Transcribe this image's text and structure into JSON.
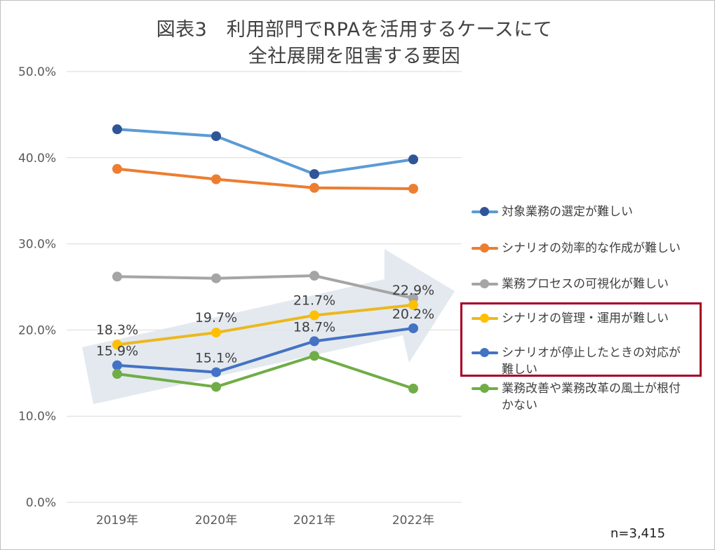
{
  "chart_data": {
    "type": "line",
    "title_line1": "図表3　利用部門でRPAを活用するケースにて",
    "title_line2": "全社展開を阻害する要因",
    "categories": [
      "2019年",
      "2020年",
      "2021年",
      "2022年"
    ],
    "y_ticks": [
      "0.0%",
      "10.0%",
      "20.0%",
      "30.0%",
      "40.0%",
      "50.0%"
    ],
    "ylim": [
      0,
      50
    ],
    "grid": true,
    "legend_position": "right",
    "series": [
      {
        "name": "対象業務の選定が難しい",
        "color": "#5b9bd5",
        "marker_color": "#2f5597",
        "values": [
          43.3,
          42.5,
          38.1,
          39.8
        ],
        "highlighted": false
      },
      {
        "name": "シナリオの効率的な作成が難しい",
        "color": "#ed7d31",
        "marker_color": "#ed7d31",
        "values": [
          38.7,
          37.5,
          36.5,
          36.4
        ],
        "highlighted": false
      },
      {
        "name": "業務プロセスの可視化が難しい",
        "color": "#a5a5a5",
        "marker_color": "#a5a5a5",
        "values": [
          26.2,
          26.0,
          26.3,
          23.7
        ],
        "highlighted": false
      },
      {
        "name": "シナリオの管理・運用が難しい",
        "color": "#ecb81d",
        "marker_color": "#ffc000",
        "values": [
          18.3,
          19.7,
          21.7,
          22.9
        ],
        "highlighted": true
      },
      {
        "name": "シナリオが停止したときの対応が難しい",
        "color": "#4472c4",
        "marker_color": "#4472c4",
        "values": [
          15.9,
          15.1,
          18.7,
          20.2
        ],
        "highlighted": true
      },
      {
        "name": "業務改善や業務改革の風土が根付かない",
        "color": "#70ad47",
        "marker_color": "#70ad47",
        "values": [
          14.9,
          13.4,
          17.0,
          13.2
        ],
        "highlighted": false
      }
    ],
    "legend_labels": [
      [
        "対象業務の選定が難しい"
      ],
      [
        "シナリオの効率的な作成が難しい"
      ],
      [
        "業務プロセスの可視化が難しい"
      ],
      [
        "シナリオの管理・運用が難しい"
      ],
      [
        "シナリオが停止したときの対応が",
        "難しい"
      ],
      [
        "業務改善や業務改革の風土が根付",
        "かない"
      ]
    ],
    "data_labels": [
      {
        "series": 3,
        "labels": [
          "18.3%",
          "19.7%",
          "21.7%",
          "22.9%"
        ]
      },
      {
        "series": 4,
        "labels": [
          "15.9%",
          "15.1%",
          "18.7%",
          "20.2%"
        ]
      }
    ],
    "annotation": "upward trend arrow behind highlighted series",
    "note": "n=3,415"
  }
}
